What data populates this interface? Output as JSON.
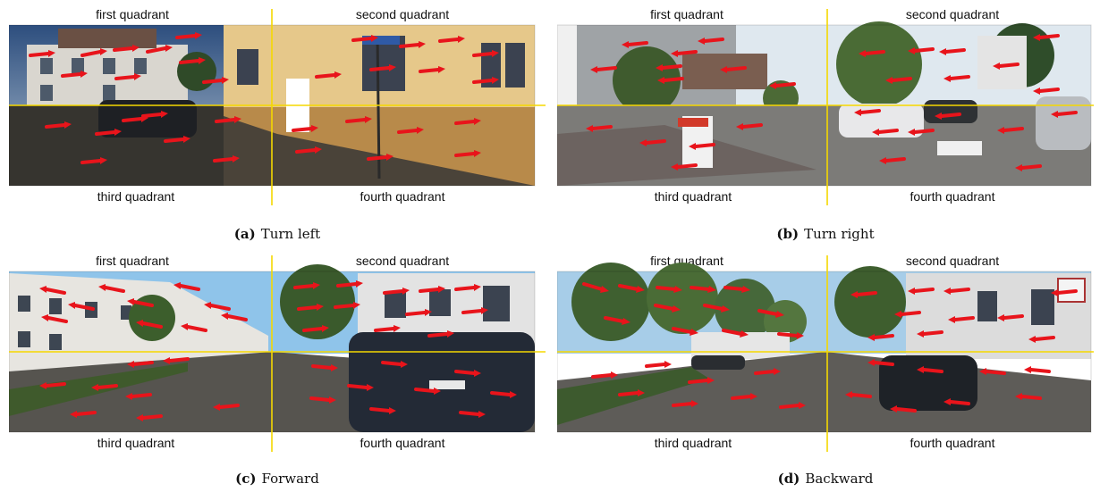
{
  "panels": [
    {
      "id": "a",
      "tag": "(a)",
      "caption": "Turn left",
      "quadrants": [
        "first quadrant",
        "second quadrant",
        "third quadrant",
        "fourth quadrant"
      ],
      "scene": "street-corner",
      "arrow_direction": "right",
      "colors": {
        "sky": "#3a5a8a",
        "wall": "#e6c88a",
        "ground": "#3c3a36"
      }
    },
    {
      "id": "b",
      "tag": "(b)",
      "caption": "Turn right",
      "quadrants": [
        "first quadrant",
        "second quadrant",
        "third quadrant",
        "fourth quadrant"
      ],
      "scene": "residential-street",
      "arrow_direction": "left",
      "colors": {
        "sky": "#d8e4ee",
        "wall": "#cfcfcf",
        "ground": "#6e6e6e"
      }
    },
    {
      "id": "c",
      "tag": "(c)",
      "caption": "Forward",
      "quadrants": [
        "first quadrant",
        "second quadrant",
        "third quadrant",
        "fourth quadrant"
      ],
      "scene": "tree-lined-street",
      "arrow_direction": "mixed-forward",
      "colors": {
        "sky": "#8fc4ea",
        "wall": "#e8e8e8",
        "ground": "#54524e"
      }
    },
    {
      "id": "d",
      "tag": "(d)",
      "caption": "Backward",
      "quadrants": [
        "first quadrant",
        "second quadrant",
        "third quadrant",
        "fourth quadrant"
      ],
      "scene": "tree-lined-street",
      "arrow_direction": "mixed-backward",
      "colors": {
        "sky": "#a7cde8",
        "wall": "#e4e4e4",
        "ground": "#5a5854"
      }
    }
  ],
  "style": {
    "arrow_color": "#e8141b",
    "axis_color": "#f5d800"
  }
}
